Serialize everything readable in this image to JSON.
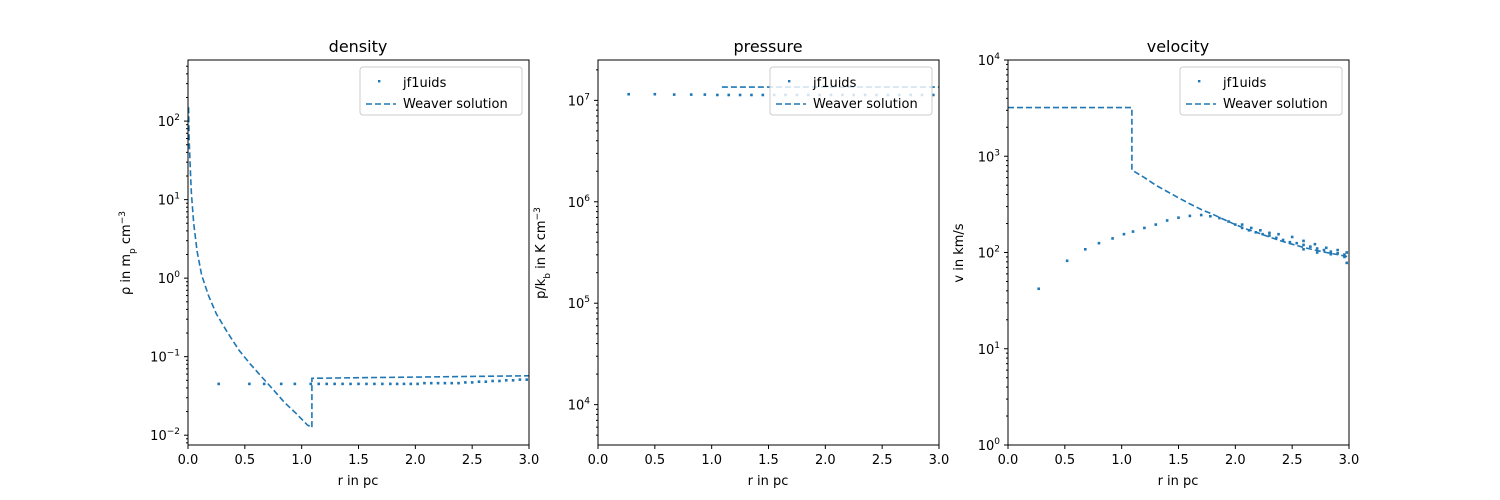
{
  "chart_data": [
    {
      "type": "scatter",
      "title": "density",
      "xlabel": "r in pc",
      "ylabel": "ρ in m_p cm^-3",
      "xlim": [
        0,
        3
      ],
      "ylim": [
        0.0075,
        600
      ],
      "yscale": "log",
      "x_ticks": [
        0,
        0.5,
        1.0,
        1.5,
        2.0,
        2.5,
        3.0
      ],
      "x_tick_labels": [
        "0.0",
        "0.5",
        "1.0",
        "1.5",
        "2.0",
        "2.5",
        "3.0"
      ],
      "y_ticks": [
        0.01,
        0.1,
        1,
        10,
        100
      ],
      "y_tick_labels": [
        "10^-2",
        "10^-1",
        "10^0",
        "10^1",
        "10^2"
      ],
      "legend_position": "upper right",
      "series": [
        {
          "name": "jf1uids",
          "kind": "scatter",
          "color": "#1f77b4",
          "points": [
            [
              0.27,
              0.045
            ],
            [
              0.54,
              0.045
            ],
            [
              0.67,
              0.045
            ],
            [
              0.82,
              0.045
            ],
            [
              0.94,
              0.045
            ],
            [
              1.08,
              0.045
            ],
            [
              1.15,
              0.045
            ],
            [
              1.22,
              0.045
            ],
            [
              1.29,
              0.045
            ],
            [
              1.36,
              0.045
            ],
            [
              1.43,
              0.045
            ],
            [
              1.5,
              0.045
            ],
            [
              1.57,
              0.045
            ],
            [
              1.64,
              0.045
            ],
            [
              1.71,
              0.045
            ],
            [
              1.78,
              0.045
            ],
            [
              1.84,
              0.045
            ],
            [
              1.9,
              0.045
            ],
            [
              1.96,
              0.045
            ],
            [
              2.02,
              0.045
            ],
            [
              2.08,
              0.046
            ],
            [
              2.14,
              0.046
            ],
            [
              2.2,
              0.046
            ],
            [
              2.26,
              0.046
            ],
            [
              2.32,
              0.046
            ],
            [
              2.38,
              0.046
            ],
            [
              2.44,
              0.047
            ],
            [
              2.5,
              0.047
            ],
            [
              2.56,
              0.048
            ],
            [
              2.62,
              0.048
            ],
            [
              2.68,
              0.049
            ],
            [
              2.74,
              0.049
            ],
            [
              2.8,
              0.05
            ],
            [
              2.86,
              0.05
            ],
            [
              2.92,
              0.051
            ],
            [
              2.98,
              0.051
            ]
          ]
        },
        {
          "name": "Weaver solution",
          "kind": "line",
          "style": "dashed",
          "color": "#1f77b4",
          "points": [
            [
              0.005,
              150
            ],
            [
              0.01,
              60
            ],
            [
              0.02,
              25
            ],
            [
              0.03,
              12
            ],
            [
              0.05,
              5
            ],
            [
              0.08,
              2.2
            ],
            [
              0.12,
              1.1
            ],
            [
              0.18,
              0.6
            ],
            [
              0.25,
              0.35
            ],
            [
              0.35,
              0.2
            ],
            [
              0.45,
              0.12
            ],
            [
              0.55,
              0.08
            ],
            [
              0.65,
              0.055
            ],
            [
              0.75,
              0.038
            ],
            [
              0.85,
              0.026
            ],
            [
              0.95,
              0.019
            ],
            [
              1.05,
              0.0135
            ],
            [
              1.09,
              0.0125
            ],
            [
              1.09,
              0.053
            ],
            [
              1.5,
              0.054
            ],
            [
              2.0,
              0.055
            ],
            [
              2.5,
              0.056
            ],
            [
              3.0,
              0.057
            ]
          ]
        }
      ]
    },
    {
      "type": "scatter",
      "title": "pressure",
      "xlabel": "r in pc",
      "ylabel": "p/k_b in K cm^-3",
      "xlim": [
        0,
        3
      ],
      "ylim": [
        4000,
        25000000
      ],
      "yscale": "log",
      "x_ticks": [
        0,
        0.5,
        1.0,
        1.5,
        2.0,
        2.5,
        3.0
      ],
      "x_tick_labels": [
        "0.0",
        "0.5",
        "1.0",
        "1.5",
        "2.0",
        "2.5",
        "3.0"
      ],
      "y_ticks": [
        10000,
        100000,
        1000000,
        10000000
      ],
      "y_tick_labels": [
        "10^4",
        "10^5",
        "10^6",
        "10^7"
      ],
      "legend_position": "upper right",
      "series": [
        {
          "name": "jf1uids",
          "kind": "scatter",
          "color": "#1f77b4",
          "points": [
            [
              0.27,
              11500000
            ],
            [
              0.5,
              11500000
            ],
            [
              0.67,
              11400000
            ],
            [
              0.82,
              11400000
            ],
            [
              0.94,
              11400000
            ],
            [
              1.05,
              11300000
            ],
            [
              1.15,
              11300000
            ],
            [
              1.25,
              11300000
            ],
            [
              1.35,
              11300000
            ],
            [
              1.45,
              11300000
            ],
            [
              1.55,
              11300000
            ],
            [
              1.65,
              11300000
            ],
            [
              1.75,
              11300000
            ],
            [
              1.85,
              11300000
            ],
            [
              1.95,
              11300000
            ],
            [
              2.05,
              11300000
            ],
            [
              2.15,
              11300000
            ],
            [
              2.25,
              11300000
            ],
            [
              2.35,
              11300000
            ],
            [
              2.45,
              11300000
            ],
            [
              2.55,
              11300000
            ],
            [
              2.65,
              11300000
            ],
            [
              2.75,
              11300000
            ],
            [
              2.85,
              11300000
            ],
            [
              2.95,
              11300000
            ]
          ]
        },
        {
          "name": "Weaver solution",
          "kind": "line",
          "style": "dashed",
          "color": "#1f77b4",
          "points": [
            [
              1.09,
              13500000
            ],
            [
              3.0,
              13500000
            ]
          ]
        }
      ]
    },
    {
      "type": "scatter",
      "title": "velocity",
      "xlabel": "r in pc",
      "ylabel": "v in km/s",
      "xlim": [
        0,
        3
      ],
      "ylim": [
        1,
        10000
      ],
      "yscale": "log",
      "x_ticks": [
        0,
        0.5,
        1.0,
        1.5,
        2.0,
        2.5,
        3.0
      ],
      "x_tick_labels": [
        "0.0",
        "0.5",
        "1.0",
        "1.5",
        "2.0",
        "2.5",
        "3.0"
      ],
      "y_ticks": [
        1,
        10,
        100,
        1000,
        10000
      ],
      "y_tick_labels": [
        "10^0",
        "10^1",
        "10^2",
        "10^3",
        "10^4"
      ],
      "legend_position": "upper right",
      "series": [
        {
          "name": "jf1uids",
          "kind": "scatter",
          "color": "#1f77b4",
          "points": [
            [
              0.27,
              42
            ],
            [
              0.52,
              82
            ],
            [
              0.68,
              108
            ],
            [
              0.8,
              125
            ],
            [
              0.92,
              140
            ],
            [
              1.02,
              155
            ],
            [
              1.1,
              165
            ],
            [
              1.2,
              180
            ],
            [
              1.3,
              195
            ],
            [
              1.4,
              215
            ],
            [
              1.5,
              230
            ],
            [
              1.6,
              240
            ],
            [
              1.7,
              245
            ],
            [
              1.78,
              238
            ],
            [
              1.86,
              228
            ],
            [
              1.94,
              210
            ],
            [
              2.0,
              195
            ],
            [
              2.06,
              180
            ],
            [
              2.12,
              170
            ],
            [
              2.18,
              162
            ],
            [
              2.24,
              155
            ],
            [
              2.3,
              150
            ],
            [
              2.36,
              142
            ],
            [
              2.42,
              135
            ],
            [
              2.48,
              128
            ],
            [
              2.54,
              125
            ],
            [
              2.6,
              120
            ],
            [
              2.66,
              115
            ],
            [
              2.72,
              110
            ],
            [
              2.78,
              106
            ],
            [
              2.84,
              102
            ],
            [
              2.9,
              98
            ],
            [
              2.96,
              95
            ],
            [
              2.06,
              195
            ],
            [
              2.14,
              180
            ],
            [
              2.22,
              170
            ],
            [
              2.3,
              160
            ],
            [
              2.38,
              155
            ],
            [
              2.5,
              145
            ],
            [
              2.6,
              132
            ],
            [
              2.7,
              122
            ],
            [
              2.8,
              112
            ],
            [
              2.9,
              106
            ],
            [
              2.98,
              100
            ],
            [
              2.6,
              108
            ],
            [
              2.72,
              100
            ],
            [
              2.84,
              96
            ],
            [
              2.96,
              90
            ],
            [
              2.98,
              78
            ]
          ]
        },
        {
          "name": "Weaver solution",
          "kind": "line",
          "style": "dashed",
          "color": "#1f77b4",
          "points": [
            [
              0.0,
              3200
            ],
            [
              1.09,
              3200
            ],
            [
              1.09,
              720
            ],
            [
              1.2,
              600
            ],
            [
              1.3,
              500
            ],
            [
              1.4,
              430
            ],
            [
              1.5,
              370
            ],
            [
              1.6,
              320
            ],
            [
              1.7,
              280
            ],
            [
              1.8,
              250
            ],
            [
              1.9,
              220
            ],
            [
              2.0,
              195
            ],
            [
              2.1,
              175
            ],
            [
              2.2,
              160
            ],
            [
              2.3,
              145
            ],
            [
              2.4,
              132
            ],
            [
              2.5,
              122
            ],
            [
              2.6,
              113
            ],
            [
              2.7,
              106
            ],
            [
              2.8,
              100
            ],
            [
              2.9,
              95
            ],
            [
              3.0,
              90
            ]
          ]
        }
      ]
    }
  ]
}
